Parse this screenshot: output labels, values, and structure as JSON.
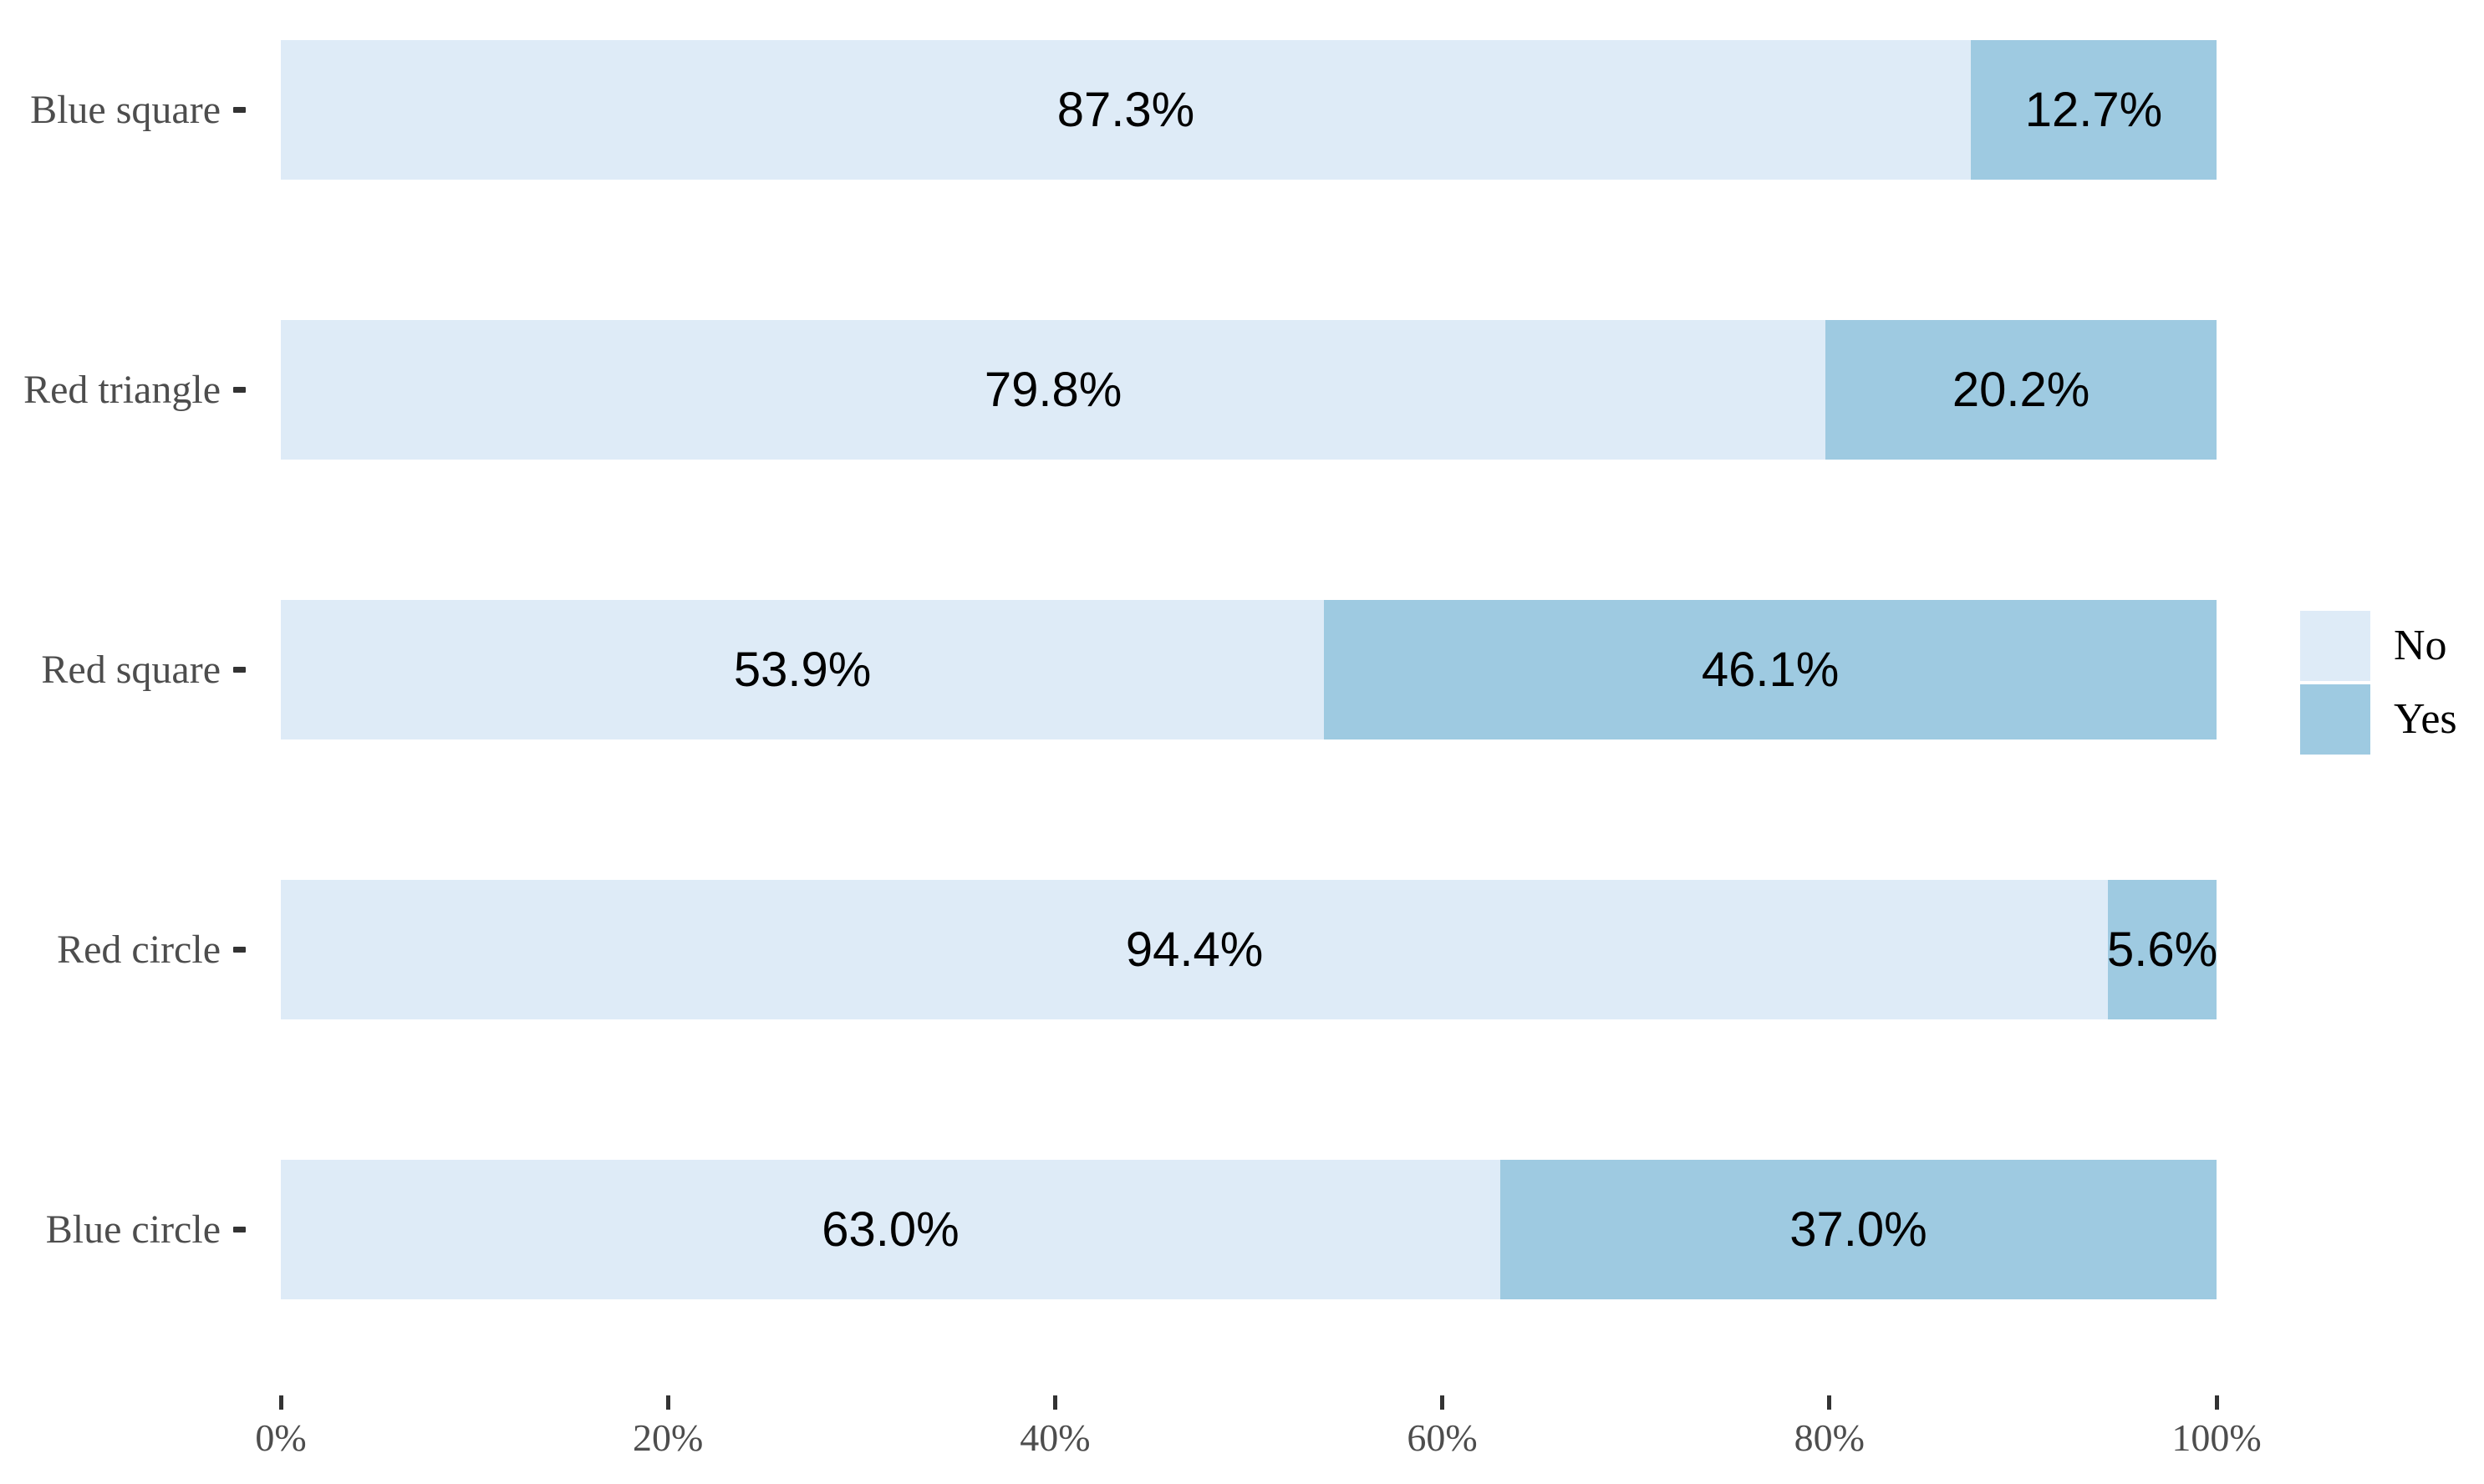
{
  "chart_data": {
    "type": "bar",
    "subtype": "horizontal-stacked-100pct",
    "title": "",
    "xlabel": "",
    "ylabel": "",
    "grid": false,
    "background": "#FFFFFF",
    "categories": [
      "Blue square",
      "Red triangle",
      "Red square",
      "Red circle",
      "Blue circle"
    ],
    "series": [
      {
        "name": "No",
        "color": "#DEEBF7",
        "values": [
          87.3,
          79.8,
          53.9,
          94.4,
          63.0
        ],
        "labels": [
          "87.3%",
          "79.8%",
          "53.9%",
          "94.4%",
          "63.0%"
        ]
      },
      {
        "name": "Yes",
        "color": "#9ECAE1",
        "values": [
          12.7,
          20.2,
          46.1,
          5.6,
          37.0
        ],
        "labels": [
          "12.7%",
          "20.2%",
          "46.1%",
          "5.6%",
          "37.0%"
        ]
      }
    ],
    "x_axis": {
      "range": [
        0,
        100
      ],
      "tick_values": [
        0,
        20,
        40,
        60,
        80,
        100
      ],
      "tick_labels": [
        "0%",
        "20%",
        "40%",
        "60%",
        "80%",
        "100%"
      ]
    },
    "legend": {
      "position": "right",
      "items": [
        "No",
        "Yes"
      ]
    },
    "style_colors": {
      "axis_text": "#4D4D4D",
      "tick_mark": "#333333",
      "bar_label_text": "#000000",
      "legend_text": "#000000"
    }
  }
}
